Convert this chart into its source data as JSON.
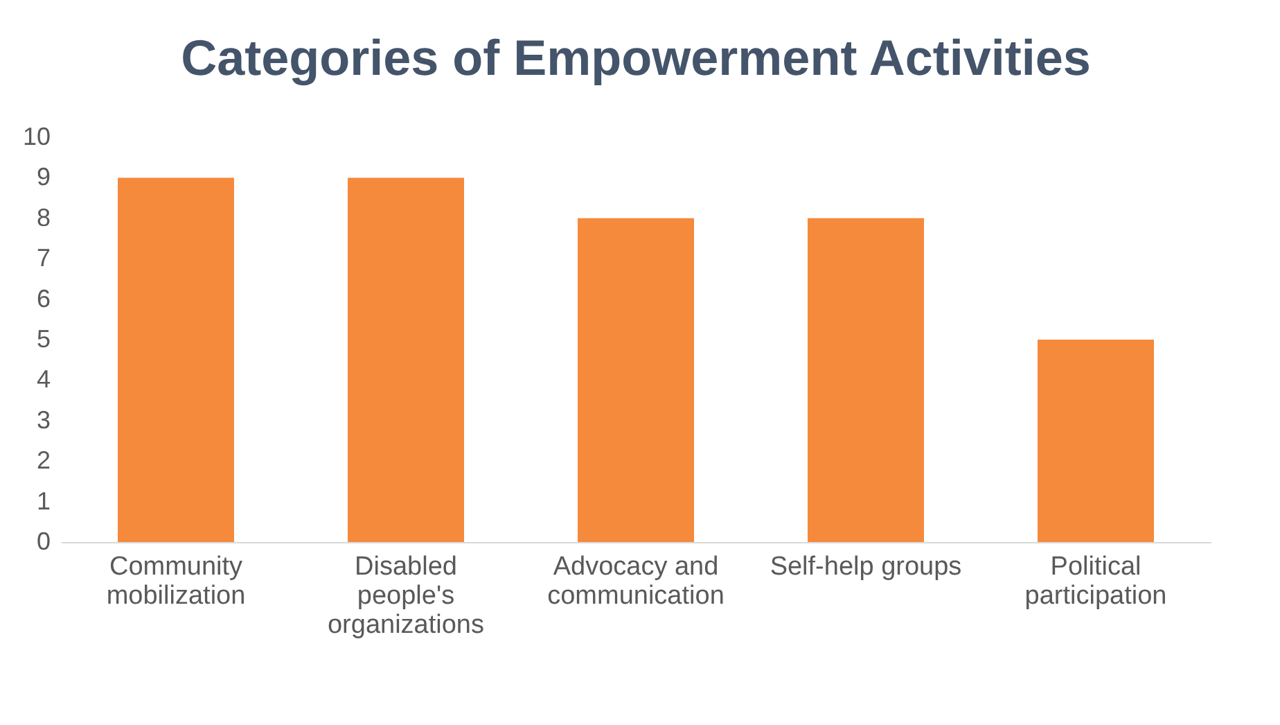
{
  "chart_data": {
    "type": "bar",
    "title": "Categories of Empowerment Activities",
    "categories": [
      "Community mobilization",
      "Disabled people's organizations",
      "Advocacy and communication",
      "Self-help groups",
      "Political participation"
    ],
    "values": [
      9,
      9,
      8,
      8,
      5
    ],
    "color": "#f58a3c",
    "ylim": [
      0,
      10
    ],
    "yticks": [
      0,
      1,
      2,
      3,
      4,
      5,
      6,
      7,
      8,
      9,
      10
    ],
    "grid": false
  }
}
